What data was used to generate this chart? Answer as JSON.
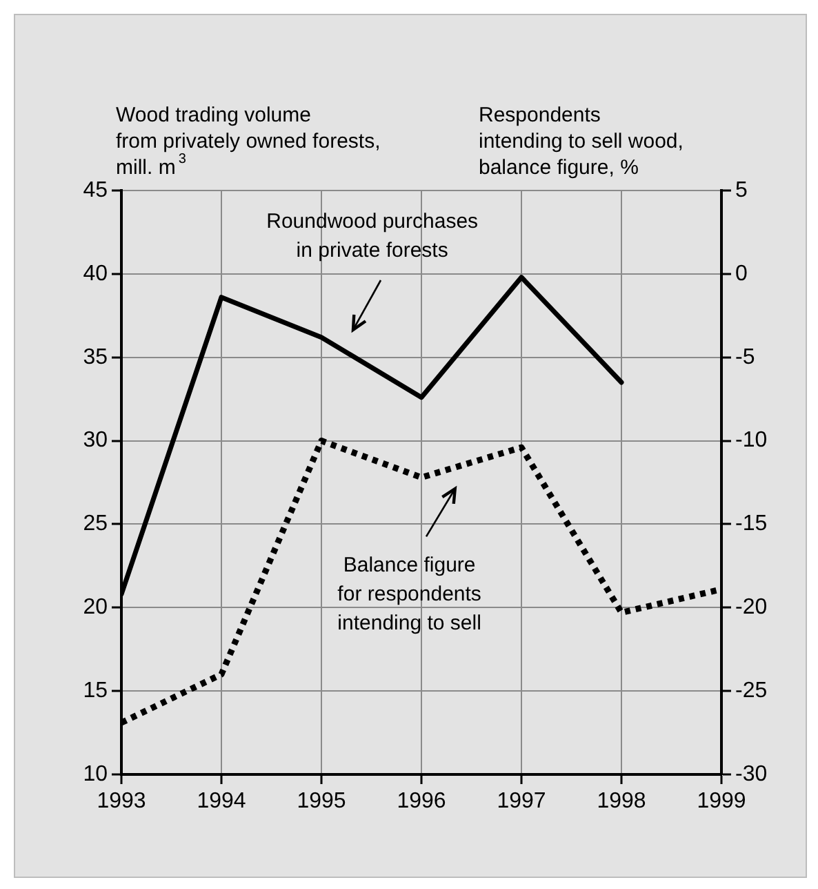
{
  "chart_data": {
    "type": "line",
    "ylabel": "Wood trading volume\nfrom privately owned forests,\nmill. m$^{3}$",
    "y2label": "Respondents\nintending to sell wood,\nbalance figure, %",
    "xlim": [
      1993,
      1999
    ],
    "xticks": [
      1993,
      1994,
      1995,
      1996,
      1997,
      1998,
      1999
    ],
    "ylim": [
      10,
      45
    ],
    "yticks": [
      10,
      15,
      20,
      25,
      30,
      35,
      40,
      45
    ],
    "y2lim": [
      -30,
      5
    ],
    "y2ticks": [
      -30,
      -25,
      -20,
      -15,
      -10,
      -5,
      0,
      5
    ],
    "grid": true,
    "legend": false,
    "marker": "none",
    "series": [
      {
        "color": "#000000",
        "line_style": "solid",
        "x": [
          1993,
          1994,
          1995,
          1996,
          1997,
          1998
        ],
        "values": [
          20.8,
          38.6,
          36.2,
          32.6,
          39.8,
          33.5
        ]
      },
      {
        "color": "#000000",
        "line_style": "dotted",
        "axis": "y2",
        "x": [
          1993,
          1994,
          1995,
          1996,
          1997,
          1998,
          1999
        ],
        "values": [
          -26.9,
          -24,
          -10,
          -12.2,
          -10.4,
          -20.3,
          -18.9
        ]
      }
    ],
    "annotations": [
      "Roundwood purchases\nin private forests",
      "Balance figure\nfor respondents\nintending to sell"
    ]
  }
}
